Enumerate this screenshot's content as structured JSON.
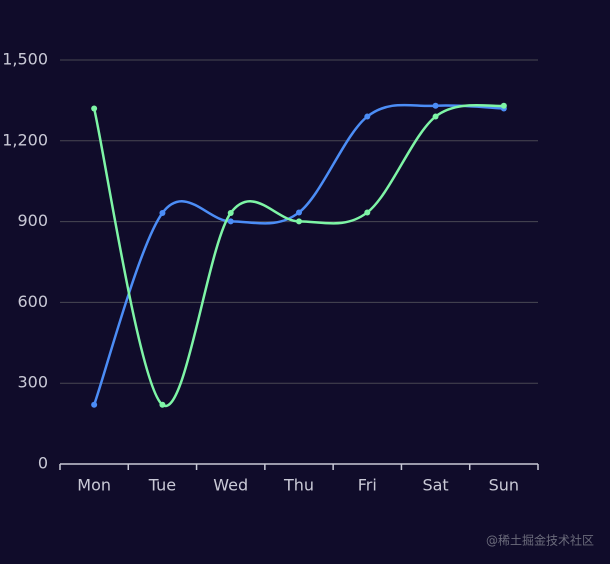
{
  "chart_data": {
    "type": "line",
    "categories": [
      "Mon",
      "Tue",
      "Wed",
      "Thu",
      "Fri",
      "Sat",
      "Sun"
    ],
    "series": [
      {
        "color": "#4c8df6",
        "values": [
          220,
          932,
          901,
          934,
          1290,
          1330,
          1320
        ]
      },
      {
        "color": "#7ef5a6",
        "values": [
          1320,
          220,
          932,
          901,
          934,
          1290,
          1330
        ]
      }
    ],
    "ylim": [
      0,
      1500
    ],
    "yticks": [
      0,
      300,
      600,
      900,
      {
        "value": 1200,
        "label": "1,200"
      },
      {
        "value": 1500,
        "label": "1,500"
      }
    ],
    "grid": true,
    "smooth": true,
    "watermark": "@稀土掘金技术社区"
  }
}
